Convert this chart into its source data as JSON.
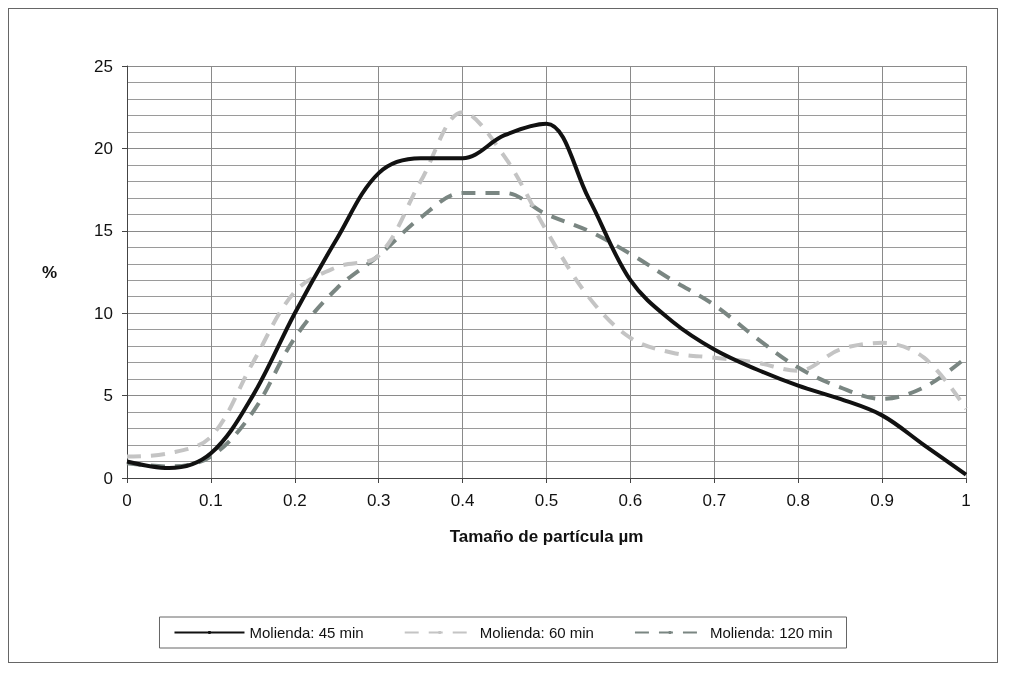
{
  "chart_data": {
    "type": "line",
    "xlabel": "Tamaño de partícula µm",
    "ylabel": "%",
    "x": [
      0,
      0.05,
      0.1,
      0.15,
      0.2,
      0.25,
      0.3,
      0.35,
      0.4,
      0.45,
      0.5,
      0.55,
      0.6,
      0.65,
      0.7,
      0.75,
      0.8,
      0.85,
      0.9,
      0.95,
      1
    ],
    "series": [
      {
        "name": "Molienda: 45 min",
        "color": "#111111",
        "line_style": "solid",
        "values": [
          1.0,
          0.6,
          1.5,
          5,
          10,
          14.5,
          18.5,
          19.4,
          19.4,
          20.8,
          21.5,
          17,
          12,
          9.5,
          7.8,
          6.6,
          5.6,
          4.8,
          3.8,
          2,
          0.2
        ]
      },
      {
        "name": "Molienda: 60 min",
        "color": "#c4c4c4",
        "line_style": "dashed",
        "values": [
          1.3,
          1.5,
          2.5,
          7,
          11.3,
          12.8,
          13.5,
          18,
          22.2,
          19.5,
          15,
          11,
          8.5,
          7.6,
          7.3,
          7,
          6.5,
          7.8,
          8.2,
          7.3,
          4.2
        ]
      },
      {
        "name": "Molienda: 120 min",
        "color": "#7a8682",
        "line_style": "dashed",
        "values": [
          0.9,
          0.7,
          1.3,
          4,
          8.5,
          11.5,
          13.5,
          15.8,
          17.3,
          17.3,
          16,
          15,
          13.6,
          12,
          10.5,
          8.5,
          6.7,
          5.5,
          4.8,
          5.5,
          7.3
        ]
      }
    ],
    "xlim": [
      0,
      1
    ],
    "xticks": [
      0,
      0.1,
      0.2,
      0.3,
      0.4,
      0.5,
      0.6,
      0.7,
      0.8,
      0.9,
      1
    ],
    "ylim": [
      0,
      25
    ],
    "yticks": [
      0,
      5,
      10,
      15,
      20,
      25
    ],
    "grid": true,
    "legend": "bottom",
    "marker": "none"
  }
}
